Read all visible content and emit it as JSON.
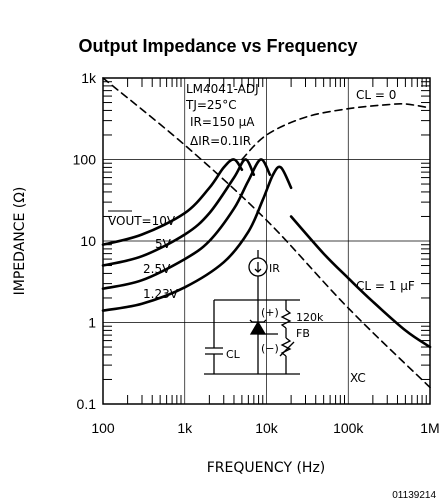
{
  "chart_data": {
    "type": "line",
    "title": "Output Impedance vs Frequency",
    "xlabel": "FREQUENCY (Hz)",
    "ylabel": "IMPEDANCE (Ω)",
    "x_scale": "log",
    "y_scale": "log",
    "xlim": [
      100,
      1000000
    ],
    "ylim": [
      0.1,
      1000
    ],
    "x_ticks": [
      {
        "value": 100,
        "label": "100"
      },
      {
        "value": 1000,
        "label": "1k"
      },
      {
        "value": 10000,
        "label": "10k"
      },
      {
        "value": 100000,
        "label": "100k"
      },
      {
        "value": 1000000,
        "label": "1M"
      }
    ],
    "y_ticks": [
      {
        "value": 0.1,
        "label": "0.1"
      },
      {
        "value": 1,
        "label": "1"
      },
      {
        "value": 10,
        "label": "10"
      },
      {
        "value": 100,
        "label": "100"
      },
      {
        "value": 1000,
        "label": "1k"
      }
    ],
    "grid": true,
    "conditions": [
      "LM4041-ADJ",
      "TJ=25°C",
      "IR=150 μA",
      "ΔIR=0.1IR"
    ],
    "series_label_10v": "VOUT=10V",
    "series": [
      {
        "name": "VOUT=10V",
        "style": "solid",
        "x": [
          100,
          300,
          1000,
          2000,
          3000,
          4000,
          5000
        ],
        "y": [
          9,
          12,
          22,
          45,
          80,
          100,
          75
        ]
      },
      {
        "name": "5V",
        "style": "solid",
        "x": [
          100,
          300,
          1000,
          2000,
          4000,
          5500,
          7000
        ],
        "y": [
          5,
          6.5,
          12,
          22,
          60,
          100,
          65
        ]
      },
      {
        "name": "2.5V",
        "style": "solid",
        "x": [
          100,
          300,
          1000,
          2000,
          4000,
          6000,
          8500,
          11000
        ],
        "y": [
          2.6,
          3.3,
          6,
          10,
          25,
          55,
          100,
          65
        ]
      },
      {
        "name": "1.23V",
        "style": "solid",
        "x": [
          100,
          300,
          1000,
          3000,
          6000,
          9000,
          12000,
          15000,
          20000
        ],
        "y": [
          1.4,
          1.7,
          2.7,
          5.5,
          13,
          32,
          65,
          80,
          45
        ]
      },
      {
        "name": "CL = 1 μF",
        "style": "solid",
        "x": [
          20000,
          50000,
          100000,
          200000,
          500000,
          1000000
        ],
        "y": [
          20,
          7,
          3.5,
          1.8,
          0.8,
          0.5
        ]
      },
      {
        "name": "XC",
        "style": "dashed",
        "x": [
          100,
          1000,
          10000,
          100000,
          1000000
        ],
        "y": [
          1000,
          150,
          18,
          1.5,
          0.16
        ]
      },
      {
        "name": "CL = 0",
        "style": "dashed",
        "x": [
          5000,
          10000,
          30000,
          100000,
          300000,
          500000,
          1000000
        ],
        "y": [
          100,
          200,
          330,
          420,
          470,
          480,
          430
        ]
      }
    ],
    "annotations": [
      {
        "text": "CL = 0"
      },
      {
        "text": "CL = 1 μF"
      },
      {
        "text": "XC"
      },
      {
        "text": "5V"
      },
      {
        "text": "2.5V"
      },
      {
        "text": "1.23V"
      }
    ],
    "inset": {
      "labels": [
        "IR",
        "(+)",
        "(−)",
        "120k",
        "FB",
        "CL"
      ]
    }
  },
  "figure_id": "01139214"
}
